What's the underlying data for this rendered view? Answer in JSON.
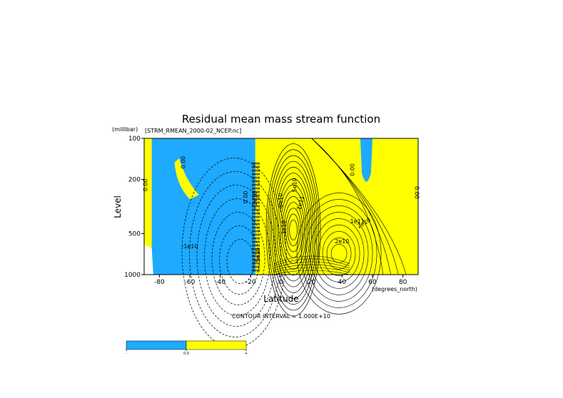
{
  "colors": {
    "negative_fill": "#1eaaff",
    "positive_fill": "#ffff00",
    "contour": "#000000",
    "background": "#ffffff"
  },
  "chart_data": {
    "type": "heatmap",
    "title": "Residual mean mass stream function",
    "subtitle": "[STRM_RMEAN_2000-02_NCEP.nc]",
    "xlabel": "Latitude",
    "x_units": "(degrees_north)",
    "ylabel": "Level",
    "y_units": "(millibar)",
    "xlim": [
      -90,
      90
    ],
    "ylim": [
      1000,
      100
    ],
    "y_scale": "log",
    "x_ticks": [
      -80,
      -60,
      -40,
      -20,
      0,
      20,
      40,
      60,
      80
    ],
    "y_ticks": [
      100,
      200,
      500,
      1000
    ],
    "contour_interval": 10000000000.0,
    "footer": "CONTOUR INTERVAL = 1.000E+10",
    "contour_labels": [
      "0.00",
      "0.00",
      "0.00",
      "-1e10",
      "-2e10",
      "-8e10",
      "5e10",
      "1e11",
      "1e11",
      "2e10",
      "2e10",
      "3e10",
      "5e10",
      "0.00",
      "0.00"
    ],
    "color_regions": [
      {
        "name": "negative",
        "value_range": "< 0",
        "x_range": [
          -85,
          -17
        ]
      },
      {
        "name": "positive",
        "value_range": ">= 0",
        "x_range": [
          -17,
          90
        ]
      }
    ],
    "colorbar": {
      "labels": [
        "-",
        "0.0",
        "+"
      ],
      "bins": [
        {
          "range": "negative",
          "color": "#1eaaff"
        },
        {
          "range": "positive",
          "color": "#ffff00"
        }
      ]
    }
  }
}
